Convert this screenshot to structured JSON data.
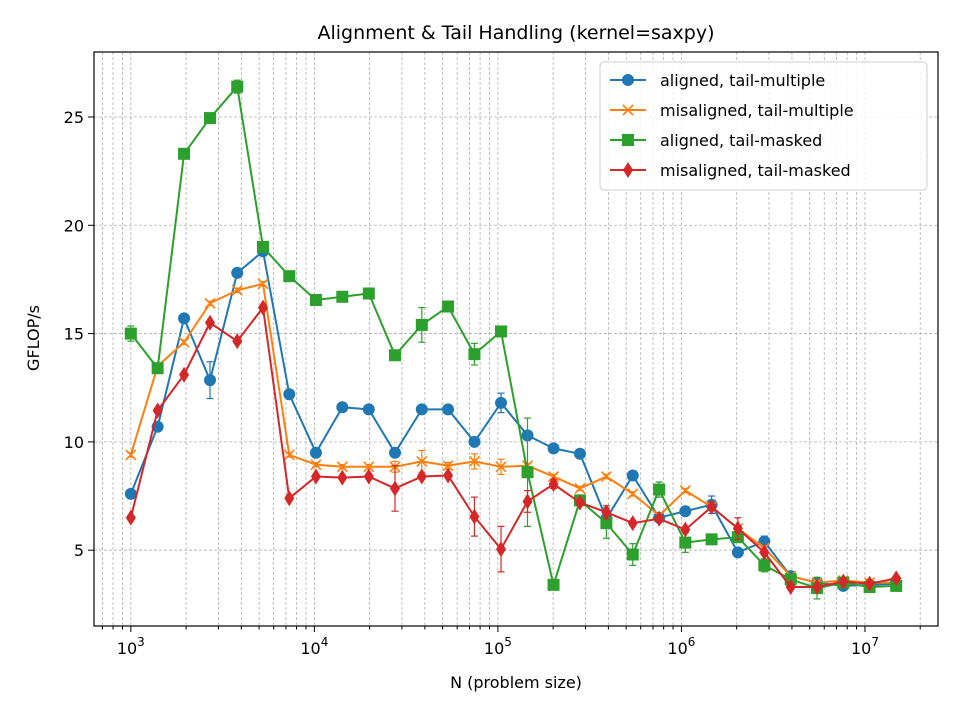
{
  "chart_data": {
    "type": "line",
    "title": "Alignment & Tail Handling (kernel=saxpy)",
    "xlabel": "N (problem size)",
    "ylabel": "GFLOP/s",
    "xscale": "log",
    "xlim": [
      630,
      25000000
    ],
    "ylim": [
      1.5,
      28.0
    ],
    "yticks": [
      5,
      10,
      15,
      20,
      25
    ],
    "xticks": [
      1000,
      10000,
      100000,
      1000000,
      10000000
    ],
    "xtick_labels": [
      {
        "base": "10",
        "exp": "3"
      },
      {
        "base": "10",
        "exp": "4"
      },
      {
        "base": "10",
        "exp": "5"
      },
      {
        "base": "10",
        "exp": "6"
      },
      {
        "base": "10",
        "exp": "7"
      }
    ],
    "grid": true,
    "legend_position": "top-right",
    "x": [
      1000,
      1400,
      1950,
      2700,
      3800,
      5250,
      7300,
      10200,
      14200,
      19800,
      27500,
      38500,
      53500,
      74500,
      104000,
      145000,
      201000,
      280000,
      390000,
      543000,
      756000,
      1050000,
      1460000,
      2030000,
      2830000,
      3940000,
      5480000,
      7620000,
      10600000,
      14800000
    ],
    "series": [
      {
        "name": "aligned, tail-multiple",
        "color": "#1f77b4",
        "marker": "circle",
        "values": [
          7.6,
          10.7,
          15.7,
          12.85,
          17.8,
          18.8,
          12.2,
          9.5,
          11.6,
          11.5,
          9.5,
          11.5,
          11.5,
          10.0,
          11.8,
          10.3,
          9.7,
          9.45,
          6.45,
          8.45,
          6.5,
          6.8,
          7.1,
          4.9,
          5.4,
          3.8,
          3.5,
          3.35,
          3.4,
          3.45
        ],
        "errors": [
          0.1,
          0.1,
          0.1,
          0.85,
          0.1,
          0.1,
          0.1,
          0.1,
          0.1,
          0.1,
          0.1,
          0.1,
          0.1,
          0.1,
          0.45,
          0.1,
          0.1,
          0.1,
          0.1,
          0.1,
          0.1,
          0.1,
          0.4,
          0.2,
          0.25,
          0.1,
          0.1,
          0.1,
          0.1,
          0.1
        ]
      },
      {
        "name": "misaligned, tail-multiple",
        "color": "#ff7f0e",
        "marker": "x",
        "values": [
          9.4,
          13.5,
          14.6,
          16.4,
          17.0,
          17.3,
          9.4,
          8.95,
          8.85,
          8.85,
          8.85,
          9.1,
          8.9,
          9.1,
          8.85,
          8.9,
          8.4,
          7.85,
          8.4,
          7.6,
          6.6,
          7.75,
          7.0,
          6.0,
          5.1,
          3.8,
          3.5,
          3.6,
          3.5,
          3.5
        ],
        "errors": [
          0.1,
          0.1,
          0.1,
          0.1,
          0.1,
          0.1,
          0.1,
          0.1,
          0.1,
          0.1,
          0.25,
          0.5,
          0.15,
          0.35,
          0.35,
          0.1,
          0.1,
          0.1,
          0.1,
          0.1,
          0.1,
          0.1,
          0.1,
          0.1,
          0.1,
          0.1,
          0.1,
          0.1,
          0.1,
          0.1
        ]
      },
      {
        "name": "aligned, tail-masked",
        "color": "#2ca02c",
        "marker": "square",
        "values": [
          15.0,
          13.4,
          23.3,
          24.95,
          26.4,
          19.0,
          17.65,
          16.55,
          16.7,
          16.85,
          14.0,
          15.4,
          16.25,
          14.05,
          15.1,
          8.6,
          3.4,
          7.3,
          6.25,
          4.8,
          7.8,
          5.35,
          5.5,
          5.6,
          4.3,
          3.65,
          3.25,
          3.5,
          3.3,
          3.35
        ],
        "errors": [
          0.35,
          0.1,
          0.1,
          0.1,
          0.3,
          0.1,
          0.1,
          0.1,
          0.1,
          0.1,
          0.1,
          0.8,
          0.2,
          0.5,
          0.1,
          2.5,
          0.1,
          0.1,
          0.7,
          0.5,
          0.35,
          0.45,
          0.1,
          0.1,
          0.3,
          0.2,
          0.5,
          0.1,
          0.1,
          0.1
        ]
      },
      {
        "name": "misaligned, tail-masked",
        "color": "#d62728",
        "marker": "diamond",
        "values": [
          6.5,
          11.45,
          13.1,
          15.5,
          14.65,
          16.2,
          7.4,
          8.4,
          8.35,
          8.4,
          7.85,
          8.4,
          8.45,
          6.55,
          5.05,
          7.25,
          8.05,
          7.2,
          6.75,
          6.25,
          6.45,
          5.95,
          7.0,
          6.0,
          4.9,
          3.3,
          3.3,
          3.55,
          3.45,
          3.7
        ],
        "errors": [
          0.1,
          0.1,
          0.1,
          0.1,
          0.1,
          0.1,
          0.1,
          0.1,
          0.1,
          0.1,
          1.05,
          0.1,
          0.1,
          0.9,
          1.05,
          0.5,
          0.2,
          0.1,
          0.3,
          0.1,
          0.1,
          0.1,
          0.1,
          0.5,
          0.1,
          0.1,
          0.1,
          0.1,
          0.1,
          0.1
        ]
      }
    ]
  }
}
